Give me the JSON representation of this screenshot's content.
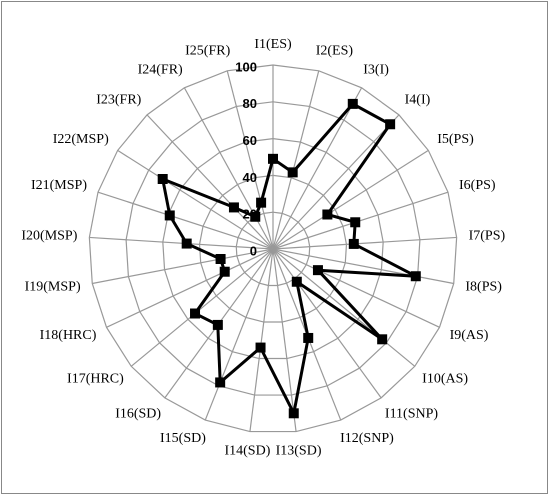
{
  "chart_data": {
    "type": "radar",
    "categories": [
      "I1(ES)",
      "I2(ES)",
      "I3(I)",
      "I4(I)",
      "I5(PS)",
      "I6(PS)",
      "I7(PS)",
      "I8(PS)",
      "I9(AS)",
      "I10(AS)",
      "I11(SNP)",
      "I12(SNP)",
      "I13(SD)",
      "I14(SD)",
      "I15(SD)",
      "I16(SD)",
      "I17(HRC)",
      "I18(HRC)",
      "I19(MSP)",
      "I20(MSP)",
      "I21(MSP)",
      "I22(MSP)",
      "I23(FR)",
      "I24(FR)",
      "I25(FR)"
    ],
    "values": [
      49,
      43,
      90,
      93,
      35,
      47,
      44,
      79,
      27,
      77,
      22,
      52,
      90,
      54,
      78,
      51,
      55,
      29,
      29,
      47,
      59,
      71,
      31,
      20,
      26
    ],
    "color": "#000000",
    "ylim": [
      0,
      100
    ],
    "yticks": [
      0,
      20,
      40,
      60,
      80,
      100
    ],
    "grid": true
  }
}
